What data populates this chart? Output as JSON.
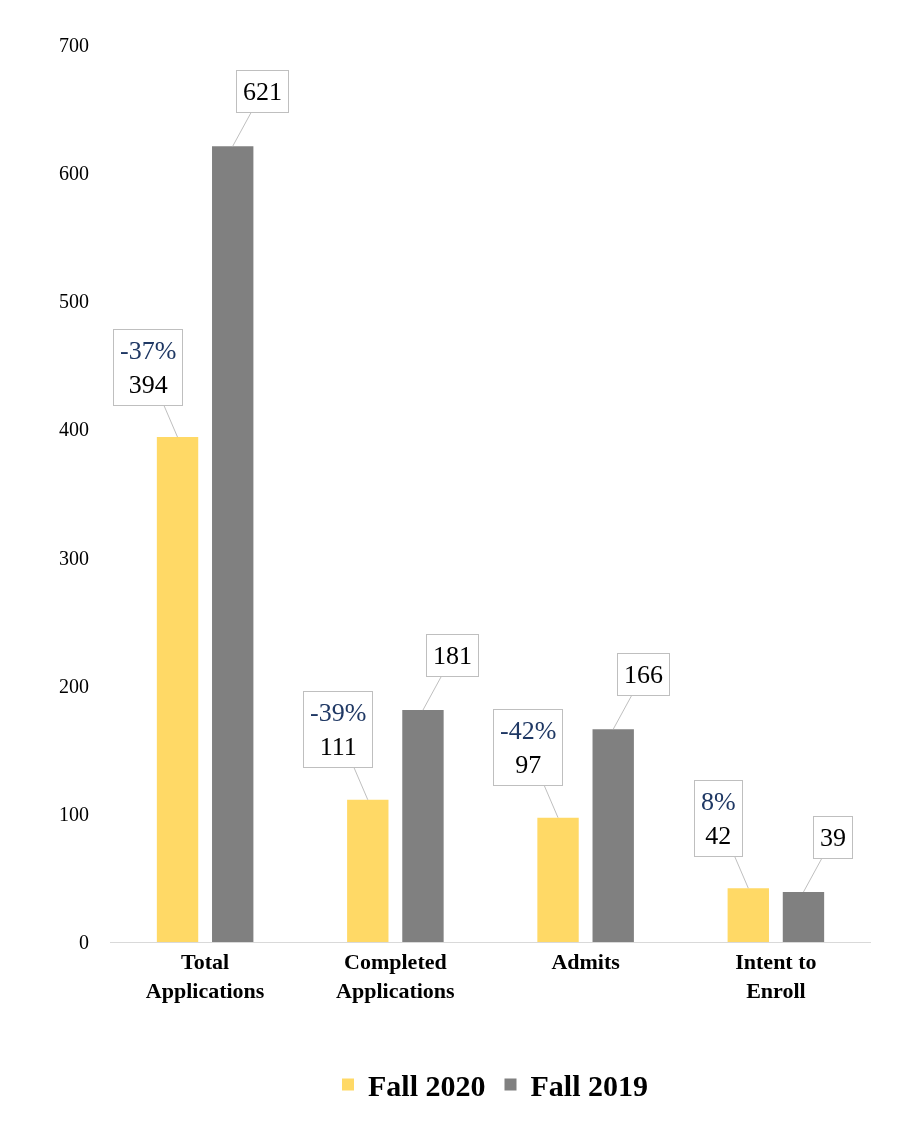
{
  "chart_data": {
    "type": "bar",
    "categories": [
      "Total Applications",
      "Completed Applications",
      "Admits",
      "Intent to Enroll"
    ],
    "series": [
      {
        "name": "Fall 2020",
        "color": "#ffd966",
        "values": [
          394,
          111,
          97,
          42
        ]
      },
      {
        "name": "Fall 2019",
        "color": "#808080",
        "values": [
          621,
          181,
          166,
          39
        ]
      }
    ],
    "data_labels": true,
    "annotations": [
      "-37%",
      "-39%",
      "-42%",
      "8%"
    ],
    "ylim": [
      0,
      700
    ],
    "yticks": [
      0,
      100,
      200,
      300,
      400,
      500,
      600,
      700
    ],
    "grid": false,
    "legend": "bottom"
  }
}
